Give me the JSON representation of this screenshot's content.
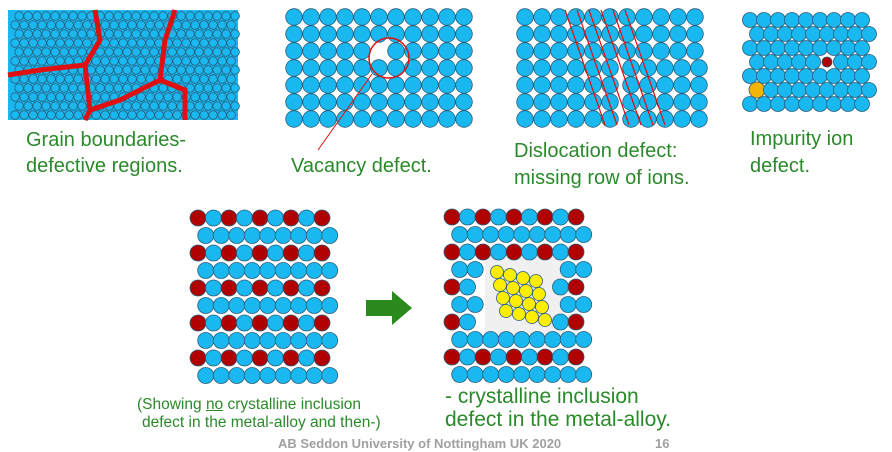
{
  "colors": {
    "blue": "#1ab8f0",
    "red": "#b00000",
    "yellow": "#ffee00",
    "gold": "#f5b400",
    "boundary": "#e01010",
    "label": "#2a8a2a",
    "arrow": "#2a8a1e"
  },
  "panels": [
    {
      "id": "grain",
      "lines": [
        "Grain boundaries-",
        "defective regions."
      ]
    },
    {
      "id": "vacancy",
      "lines": [
        "Vacancy defect."
      ]
    },
    {
      "id": "dislocation",
      "lines": [
        "Dislocation defect:",
        "missing row of ions."
      ]
    },
    {
      "id": "impurity",
      "lines": [
        "Impurity ion",
        "defect."
      ]
    }
  ],
  "caption_left": {
    "pre": "(Showing ",
    "underlined": "no",
    "post": " crystalline inclusion",
    "line2": "defect in the metal-alloy and then-)"
  },
  "caption_right": [
    "- crystalline inclusion",
    "defect in the metal-alloy."
  ],
  "footer": {
    "text": "AB Seddon  University of Nottingham UK 2020",
    "page": "16"
  }
}
